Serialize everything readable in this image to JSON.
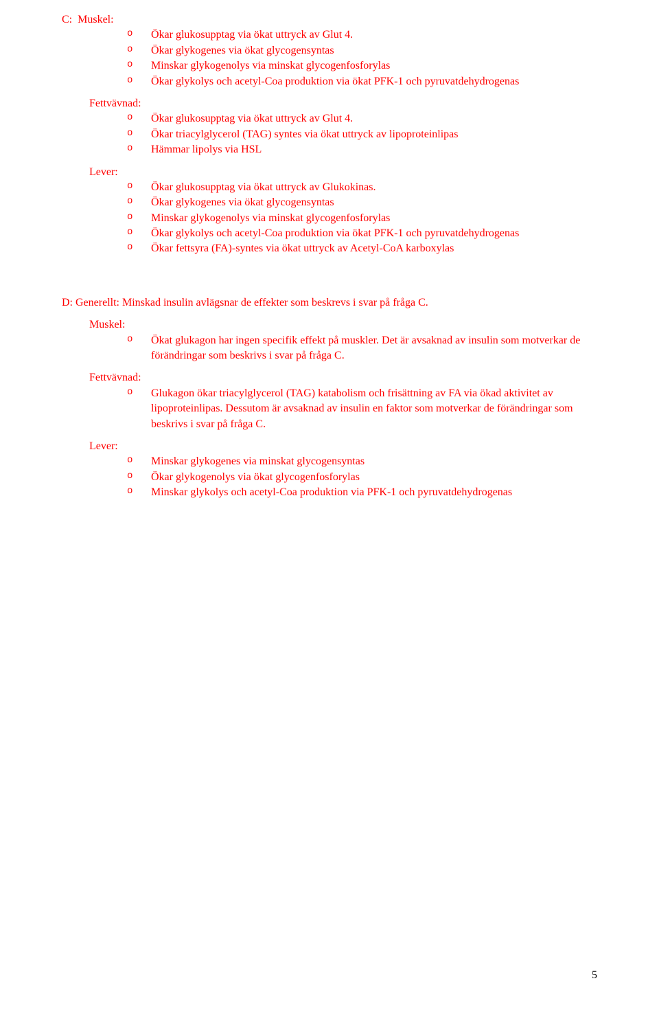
{
  "colors": {
    "answer_text": "#ff0000",
    "body_text": "#000000",
    "background": "#ffffff"
  },
  "typography": {
    "family": "Times New Roman",
    "body_size_pt": 12,
    "marker_family": "Courier New"
  },
  "sectionC": {
    "label": "C:",
    "muskel": {
      "label": "Muskel:",
      "items": [
        "Ökar glukosupptag via ökat uttryck av Glut 4.",
        "Ökar glykogenes via ökat glycogensyntas",
        "Minskar glykogenolys via minskat glycogenfosforylas",
        "Ökar glykolys och acetyl-Coa produktion via ökat PFK-1 och pyruvatdehydrogenas"
      ]
    },
    "fettvavnad": {
      "label": "Fettvävnad:",
      "items": [
        "Ökar glukosupptag via ökat uttryck av Glut 4.",
        "Ökar triacylglycerol (TAG) syntes via ökat uttryck av lipoproteinlipas",
        "Hämmar lipolys via HSL"
      ]
    },
    "lever": {
      "label": "Lever:",
      "items": [
        "Ökar glukosupptag via ökat uttryck av Glukokinas.",
        "Ökar glykogenes via ökat glycogensyntas",
        "Minskar glykogenolys via minskat glycogenfosforylas",
        "Ökar glykolys och acetyl-Coa produktion via ökat PFK-1 och pyruvatdehydrogenas",
        "Ökar fettsyra (FA)-syntes via ökat uttryck av Acetyl-CoA karboxylas"
      ]
    }
  },
  "sectionD": {
    "intro": "D: Generellt: Minskad insulin avlägsnar de effekter som beskrevs i svar på fråga C.",
    "muskel": {
      "label": "Muskel:",
      "items": [
        "Ökat glukagon har ingen specifik effekt på muskler. Det är avsaknad av insulin som motverkar de förändringar som beskrivs i svar på fråga C."
      ]
    },
    "fettvavnad": {
      "label": "Fettvävnad:",
      "items": [
        "Glukagon ökar triacylglycerol (TAG) katabolism och frisättning av FA via ökad aktivitet av lipoproteinlipas. Dessutom är avsaknad av insulin en faktor som motverkar de förändringar som beskrivs i svar på fråga C."
      ]
    },
    "lever": {
      "label": "Lever:",
      "items": [
        "Minskar glykogenes via minskat glycogensyntas",
        "Ökar glykogenolys via ökat glycogenfosforylas",
        "Minskar glykolys och acetyl-Coa produktion via PFK-1 och pyruvatdehydrogenas"
      ]
    }
  },
  "page_number": "5",
  "bullet_marker": "o"
}
